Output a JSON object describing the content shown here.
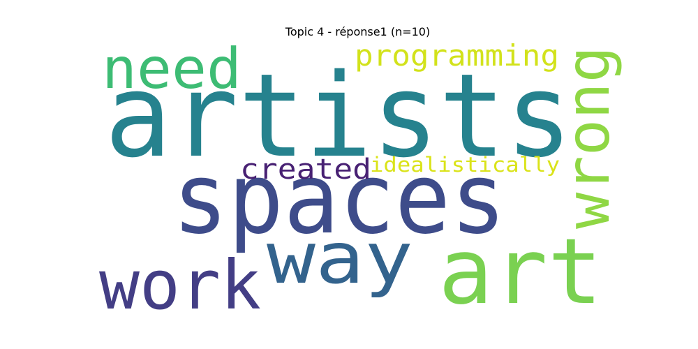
{
  "title": "Topic 4 - réponse1 (n=10)",
  "words": [
    {
      "text": "artists",
      "color": "#26828e"
    },
    {
      "text": "spaces",
      "color": "#3e4c8a"
    },
    {
      "text": "art",
      "color": "#7ad151"
    },
    {
      "text": "way",
      "color": "#33638d"
    },
    {
      "text": "work",
      "color": "#433e85"
    },
    {
      "text": "wrong",
      "color": "#8fd744"
    },
    {
      "text": "need",
      "color": "#3dbc74"
    },
    {
      "text": "programming",
      "color": "#d2e21b"
    },
    {
      "text": "created",
      "color": "#482173"
    },
    {
      "text": "idealistically",
      "color": "#dae319"
    }
  ]
}
